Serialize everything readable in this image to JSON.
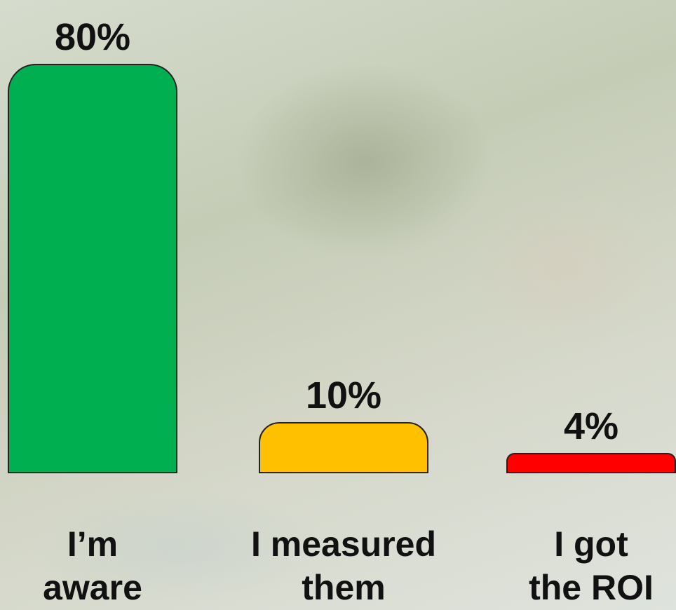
{
  "chart_data": {
    "type": "bar",
    "categories": [
      "I’m aware",
      "I measured them",
      "I got the ROI"
    ],
    "values": [
      80,
      10,
      4
    ],
    "value_labels": [
      "80%",
      "10%",
      "4%"
    ],
    "colors": [
      "#00b050",
      "#ffc000",
      "#ff0000"
    ]
  }
}
